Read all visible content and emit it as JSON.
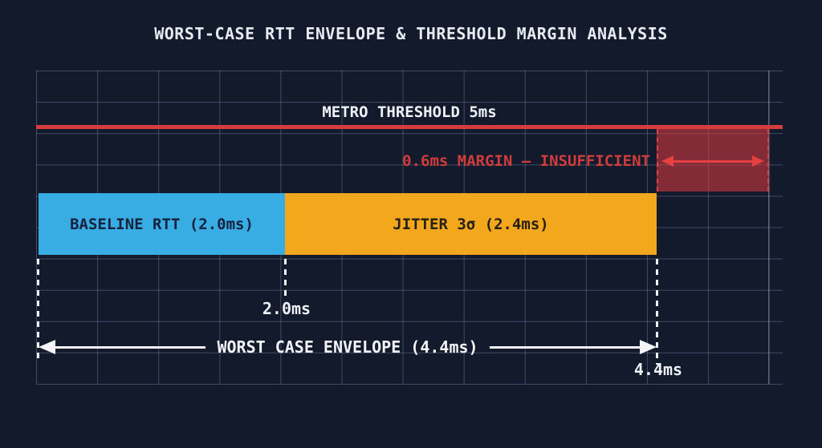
{
  "title": "WORST-CASE RTT ENVELOPE & THRESHOLD MARGIN ANALYSIS",
  "threshold": {
    "label": "METRO THRESHOLD 5ms",
    "value_ms": 5.0,
    "line_color": "#d63c3c"
  },
  "margin": {
    "label": "0.6ms MARGIN — INSUFFICIENT",
    "value_ms": 0.6,
    "status": "INSUFFICIENT",
    "text_color": "#ce3c3c",
    "region_fill": "rgba(212,56,62,0.58)"
  },
  "segments": [
    {
      "name": "baseline-rtt",
      "label": "BASELINE RTT (2.0ms)",
      "value_ms": 2.0,
      "color": "#38ade3"
    },
    {
      "name": "jitter-3sigma",
      "label": "JITTER 3σ (2.4ms)",
      "value_ms": 2.4,
      "color": "#f2a71c"
    }
  ],
  "markers": {
    "baseline_end": "2.0ms",
    "envelope_end": "4.4ms"
  },
  "envelope": {
    "label": "WORST CASE ENVELOPE (4.4ms)",
    "value_ms": 4.4
  },
  "colors": {
    "background": "#131a2c",
    "grid_line": "rgba(138,152,185,0.38)",
    "title_text": "#e7eaf1",
    "white_annotation": "#f2f4f8"
  },
  "chart_data": {
    "type": "bar",
    "orientation": "horizontal-stacked",
    "unit": "ms",
    "title": "WORST-CASE RTT ENVELOPE & THRESHOLD MARGIN ANALYSIS",
    "series": [
      {
        "name": "BASELINE RTT",
        "value": 2.0
      },
      {
        "name": "JITTER 3σ",
        "value": 2.4
      }
    ],
    "stacked_total": 4.4,
    "threshold": {
      "label": "METRO THRESHOLD 5ms",
      "value": 5.0
    },
    "margin": {
      "value": 0.6,
      "status": "INSUFFICIENT"
    },
    "x_markers": [
      2.0,
      4.4
    ],
    "xlim": [
      0,
      5.0
    ],
    "grid": true,
    "annotations": [
      "METRO THRESHOLD 5ms",
      "0.6ms MARGIN — INSUFFICIENT",
      "WORST CASE ENVELOPE (4.4ms)",
      "2.0ms",
      "4.4ms"
    ]
  }
}
